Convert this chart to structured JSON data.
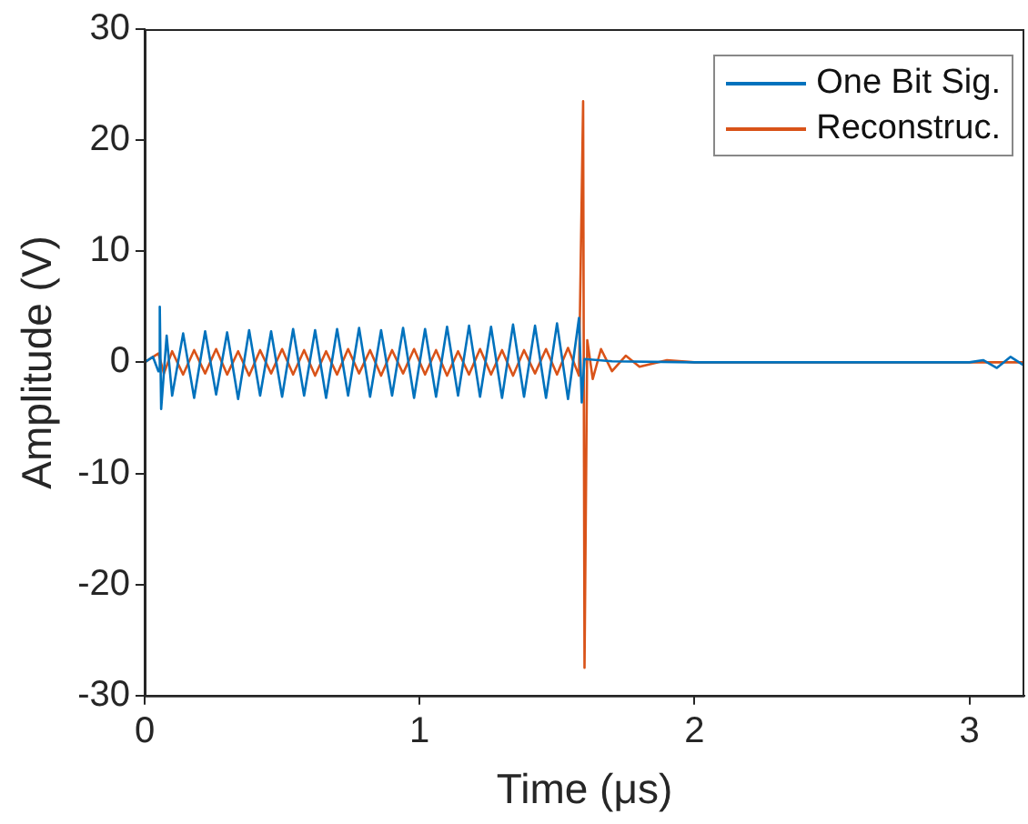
{
  "chart_data": {
    "type": "line",
    "xlabel": "Time (μs)",
    "ylabel": "Amplitude (V)",
    "xlim": [
      0,
      3.2
    ],
    "xticks": [
      0,
      1,
      2,
      3
    ],
    "ylim": [
      -30,
      30
    ],
    "yticks": [
      -30,
      -20,
      -10,
      0,
      10,
      20,
      30
    ],
    "grid": false,
    "legend": "top right",
    "marker": "none",
    "line_style": "solid",
    "series": [
      {
        "name": "One Bit Sig.",
        "color": "#0072bd",
        "x": [
          0,
          0.03,
          0.05,
          0.055,
          0.06,
          0.08,
          0.1,
          0.14,
          0.18,
          0.22,
          0.26,
          0.3,
          0.34,
          0.38,
          0.42,
          0.46,
          0.5,
          0.54,
          0.58,
          0.62,
          0.66,
          0.7,
          0.74,
          0.78,
          0.82,
          0.86,
          0.9,
          0.94,
          0.98,
          1.02,
          1.06,
          1.1,
          1.14,
          1.18,
          1.22,
          1.26,
          1.3,
          1.34,
          1.38,
          1.42,
          1.46,
          1.5,
          1.54,
          1.58,
          1.59,
          1.6,
          1.7,
          2,
          2.5,
          3,
          3.05,
          3.1,
          3.15,
          3.2
        ],
        "values": [
          0,
          0.5,
          -0.8,
          5,
          -4.2,
          2.4,
          -3,
          2.6,
          -3.2,
          2.8,
          -2.9,
          2.7,
          -3.3,
          2.9,
          -3,
          2.8,
          -3.1,
          3,
          -3,
          2.9,
          -3.2,
          3,
          -3,
          3.1,
          -3.1,
          2.9,
          -3,
          3.1,
          -3.2,
          3,
          -3.1,
          3.2,
          -3,
          3.3,
          -3.1,
          3.2,
          -3.2,
          3.4,
          -3.1,
          3.3,
          -3.2,
          3.5,
          -3.3,
          4,
          -3.6,
          0.3,
          0.1,
          0,
          0,
          0,
          0.2,
          -0.5,
          0.5,
          -0.3
        ]
      },
      {
        "name": "Reconstruc.",
        "color": "#d95319",
        "x": [
          0,
          0.05,
          0.07,
          0.1,
          0.14,
          0.18,
          0.22,
          0.26,
          0.3,
          0.34,
          0.38,
          0.42,
          0.46,
          0.5,
          0.54,
          0.58,
          0.62,
          0.66,
          0.7,
          0.74,
          0.78,
          0.82,
          0.86,
          0.9,
          0.94,
          0.98,
          1.02,
          1.06,
          1.1,
          1.14,
          1.18,
          1.22,
          1.26,
          1.3,
          1.34,
          1.38,
          1.42,
          1.46,
          1.5,
          1.54,
          1.58,
          1.595,
          1.6,
          1.61,
          1.63,
          1.66,
          1.7,
          1.75,
          1.8,
          1.9,
          2,
          3.2
        ],
        "values": [
          0,
          0.8,
          -1,
          1,
          -1.1,
          1.1,
          -1,
          1.2,
          -1.1,
          1,
          -1.2,
          1.1,
          -1,
          1.2,
          -1.1,
          1.1,
          -1.2,
          1,
          -1.1,
          1.2,
          -1,
          1.1,
          -1.2,
          1.1,
          -1,
          1.2,
          -1.1,
          1.1,
          -1.2,
          1,
          -1.1,
          1.2,
          -1.1,
          1.1,
          -1.2,
          1.1,
          -1,
          1.2,
          -1.1,
          1.3,
          -1.2,
          23.5,
          -27.5,
          2,
          -1.5,
          1.2,
          -0.8,
          0.6,
          -0.4,
          0.2,
          0,
          0
        ]
      }
    ]
  }
}
